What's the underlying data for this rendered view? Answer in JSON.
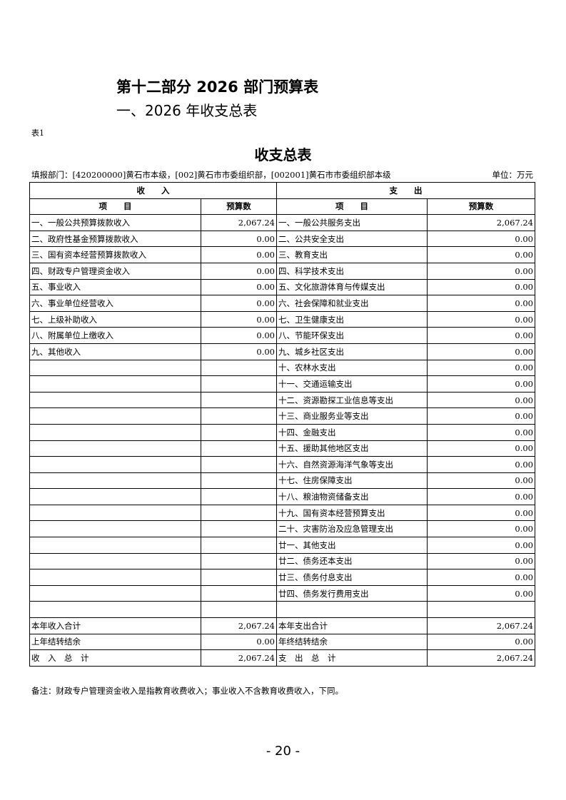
{
  "heading": "第十二部分 2026 部门预算表",
  "subheading": "一、2026 年收支总表",
  "table_no": "表1",
  "title": "收支总表",
  "department": "填报部门：[420200000]黄石市本级，[002]黄石市市委组织部，[002001]黄石市市委组织部本级",
  "unit": "单位：万元",
  "header": {
    "income": "收　　入",
    "expense": "支　　出",
    "item": "项　　目",
    "amount": "预算数"
  },
  "income": [
    {
      "item": "一、一般公共预算拨款收入",
      "amount": "2,067.24"
    },
    {
      "item": "二、政府性基金预算拨款收入",
      "amount": "0.00"
    },
    {
      "item": "三、国有资本经营预算拨款收入",
      "amount": "0.00"
    },
    {
      "item": "四、财政专户管理资金收入",
      "amount": "0.00"
    },
    {
      "item": "五、事业收入",
      "amount": "0.00"
    },
    {
      "item": "六、事业单位经营收入",
      "amount": "0.00"
    },
    {
      "item": "七、上级补助收入",
      "amount": "0.00"
    },
    {
      "item": "八、附属单位上缴收入",
      "amount": "0.00"
    },
    {
      "item": "九、其他收入",
      "amount": "0.00"
    }
  ],
  "expense": [
    {
      "item": "一、一般公共服务支出",
      "amount": "2,067.24"
    },
    {
      "item": "二、公共安全支出",
      "amount": "0.00"
    },
    {
      "item": "三、教育支出",
      "amount": "0.00"
    },
    {
      "item": "四、科学技术支出",
      "amount": "0.00"
    },
    {
      "item": "五、文化旅游体育与传媒支出",
      "amount": "0.00"
    },
    {
      "item": "六、社会保障和就业支出",
      "amount": "0.00"
    },
    {
      "item": "七、卫生健康支出",
      "amount": "0.00"
    },
    {
      "item": "八、节能环保支出",
      "amount": "0.00"
    },
    {
      "item": "九、城乡社区支出",
      "amount": "0.00"
    },
    {
      "item": "十、农林水支出",
      "amount": "0.00"
    },
    {
      "item": "十一、交通运输支出",
      "amount": "0.00"
    },
    {
      "item": "十二、资源勘探工业信息等支出",
      "amount": "0.00"
    },
    {
      "item": "十三、商业服务业等支出",
      "amount": "0.00"
    },
    {
      "item": "十四、金融支出",
      "amount": "0.00"
    },
    {
      "item": "十五、援助其他地区支出",
      "amount": "0.00"
    },
    {
      "item": "十六、自然资源海洋气象等支出",
      "amount": "0.00"
    },
    {
      "item": "十七、住房保障支出",
      "amount": "0.00"
    },
    {
      "item": "十八、粮油物资储备支出",
      "amount": "0.00"
    },
    {
      "item": "十九、国有资本经营预算支出",
      "amount": "0.00"
    },
    {
      "item": "二十、灾害防治及应急管理支出",
      "amount": "0.00"
    },
    {
      "item": "廿一、其他支出",
      "amount": "0.00"
    },
    {
      "item": "廿二、债务还本支出",
      "amount": "0.00"
    },
    {
      "item": "廿三、债务付息支出",
      "amount": "0.00"
    },
    {
      "item": "廿四、债务发行费用支出",
      "amount": "0.00"
    }
  ],
  "summary": [
    {
      "income_item": "本年收入合计",
      "income_amount": "2,067.24",
      "expense_item": "本年支出合计",
      "expense_amount": "2,067.24"
    },
    {
      "income_item": "上年结转结余",
      "income_amount": "0.00",
      "expense_item": "年终结转结余",
      "expense_amount": "0.00"
    },
    {
      "income_item": "收　入　总　计",
      "income_amount": "2,067.24",
      "expense_item": "支　出　总　计",
      "expense_amount": "2,067.24"
    }
  ],
  "note": "备注：财政专户管理资金收入是指教育收费收入；事业收入不含教育收费收入，下同。",
  "page_number": "- 20 -"
}
